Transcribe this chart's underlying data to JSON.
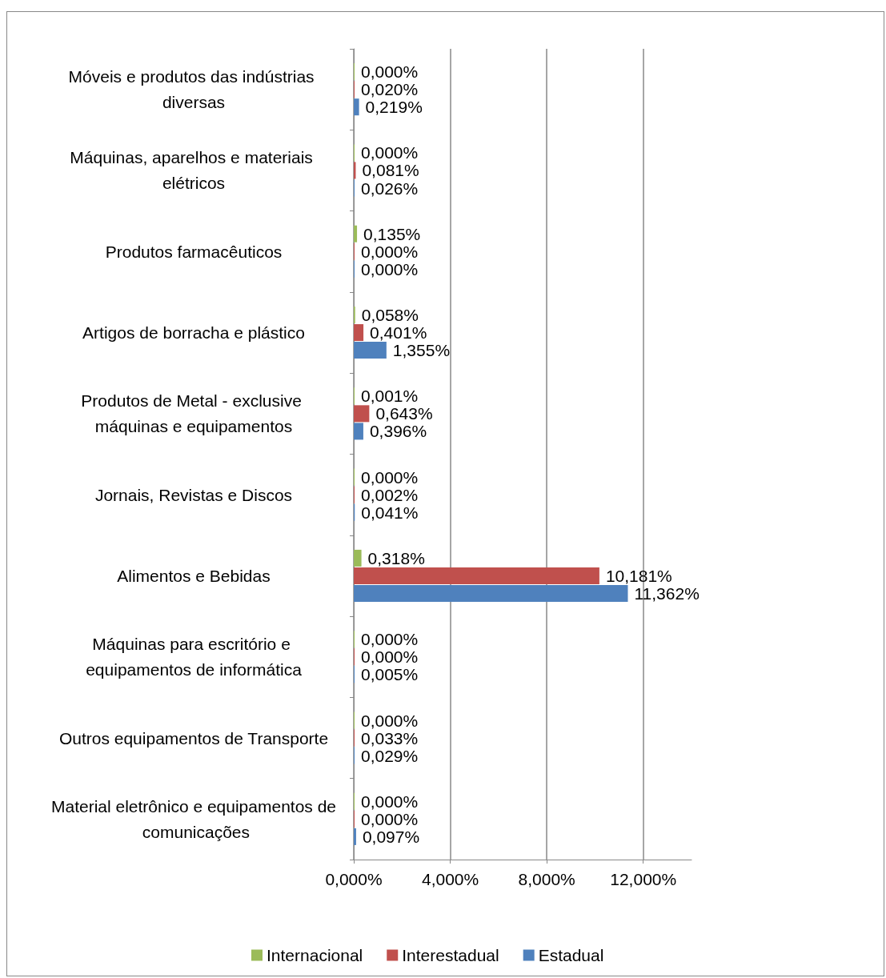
{
  "chart_data": {
    "type": "bar",
    "orientation": "horizontal",
    "categories": [
      "Móveis e produtos das indústrias diversas",
      "Máquinas, aparelhos e materiais elétricos",
      "Produtos farmacêuticos",
      "Artigos de borracha e plástico",
      "Produtos de Metal - exclusive máquinas e equipamentos",
      "Jornais, Revistas e Discos",
      "Alimentos e Bebidas",
      "Máquinas para escritório e equipamentos de informática",
      "Outros equipamentos de Transporte",
      "Material eletrônico e equipamentos de comunicações"
    ],
    "series": [
      {
        "name": "Internacional",
        "color": "#9bbb59",
        "values": [
          0.0,
          0.0,
          0.135,
          0.058,
          0.001,
          0.0,
          0.318,
          0.0,
          0.0,
          0.0
        ],
        "value_labels": [
          "0,000%",
          "0,000%",
          "0,135%",
          "0,058%",
          "0,001%",
          "0,000%",
          "0,318%",
          "0,000%",
          "0,000%",
          "0,000%"
        ]
      },
      {
        "name": "Interestadual",
        "color": "#c0504d",
        "values": [
          0.02,
          0.081,
          0.0,
          0.401,
          0.643,
          0.002,
          10.181,
          0.0,
          0.033,
          0.0
        ],
        "value_labels": [
          "0,020%",
          "0,081%",
          "0,000%",
          "0,401%",
          "0,643%",
          "0,002%",
          "10,181%",
          "0,000%",
          "0,033%",
          "0,000%"
        ]
      },
      {
        "name": "Estadual",
        "color": "#4f81bd",
        "values": [
          0.219,
          0.026,
          0.0,
          1.355,
          0.396,
          0.041,
          11.362,
          0.005,
          0.029,
          0.097
        ],
        "value_labels": [
          "0,219%",
          "0,026%",
          "0,000%",
          "1,355%",
          "0,396%",
          "0,041%",
          "11,362%",
          "0,005%",
          "0,029%",
          "0,097%"
        ]
      }
    ],
    "xlim": [
      0,
      14
    ],
    "xticks": [
      {
        "value": 0,
        "label": "0,000%"
      },
      {
        "value": 4,
        "label": "4,000%"
      },
      {
        "value": 8,
        "label": "8,000%"
      },
      {
        "value": 12,
        "label": "12,000%"
      }
    ],
    "grid": "x",
    "legend": "bottom"
  }
}
